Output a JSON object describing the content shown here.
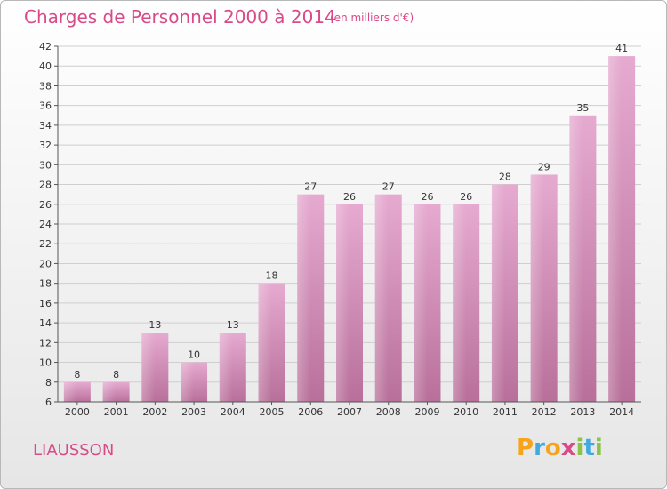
{
  "chart_data": {
    "type": "bar",
    "title": "Charges de Personnel 2000 à 2014",
    "subtitle": "(en milliers d'€)",
    "categories": [
      "2000",
      "2001",
      "2002",
      "2003",
      "2004",
      "2005",
      "2006",
      "2007",
      "2008",
      "2009",
      "2010",
      "2011",
      "2012",
      "2013",
      "2014"
    ],
    "values": [
      8,
      8,
      13,
      10,
      13,
      18,
      27,
      26,
      27,
      26,
      26,
      28,
      29,
      35,
      41
    ],
    "ylim": [
      6,
      42
    ],
    "yticks": [
      6,
      8,
      10,
      12,
      14,
      16,
      18,
      20,
      22,
      24,
      26,
      28,
      30,
      32,
      34,
      36,
      38,
      40,
      42
    ],
    "grid": true,
    "bar_color": "#d9a0c4"
  },
  "commune": "LIAUSSON",
  "logo": {
    "letters": [
      "P",
      "r",
      "o",
      "x",
      "i",
      "t",
      "i"
    ],
    "colors": [
      "#f7a41d",
      "#3fa9e0",
      "#f7a41d",
      "#d94a88",
      "#8bc34a",
      "#3fa9e0",
      "#8bc34a"
    ]
  }
}
